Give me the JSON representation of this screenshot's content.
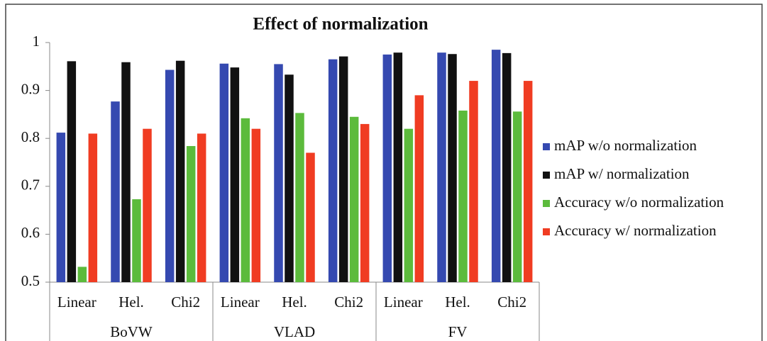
{
  "chart_data": {
    "type": "bar",
    "title": "Effect of normalization",
    "categories": [
      "Linear",
      "Hel.",
      "Chi2",
      "Linear",
      "Hel.",
      "Chi2",
      "Linear",
      "Hel.",
      "Chi2"
    ],
    "groups": [
      "BoVW",
      "VLAD",
      "FV"
    ],
    "series": [
      {
        "name": "mAP w/o normalization",
        "color": "#3549b0",
        "values": [
          0.812,
          0.877,
          0.943,
          0.956,
          0.955,
          0.965,
          0.975,
          0.979,
          0.985
        ]
      },
      {
        "name": "mAP w/ normalization",
        "color": "#111111",
        "values": [
          0.961,
          0.959,
          0.962,
          0.948,
          0.933,
          0.971,
          0.979,
          0.976,
          0.978
        ]
      },
      {
        "name": "Accuracy w/o normalization",
        "color": "#5cbb3c",
        "values": [
          0.532,
          0.673,
          0.784,
          0.842,
          0.853,
          0.845,
          0.82,
          0.858,
          0.856
        ]
      },
      {
        "name": "Accuracy w/ normalization",
        "color": "#f03c22",
        "values": [
          0.81,
          0.82,
          0.81,
          0.82,
          0.77,
          0.83,
          0.89,
          0.92,
          0.92
        ]
      }
    ],
    "ylim": [
      0.5,
      1
    ],
    "yticks": [
      0.5,
      0.6,
      0.7,
      0.8,
      0.9,
      1
    ],
    "grid": false,
    "legend": "right"
  }
}
